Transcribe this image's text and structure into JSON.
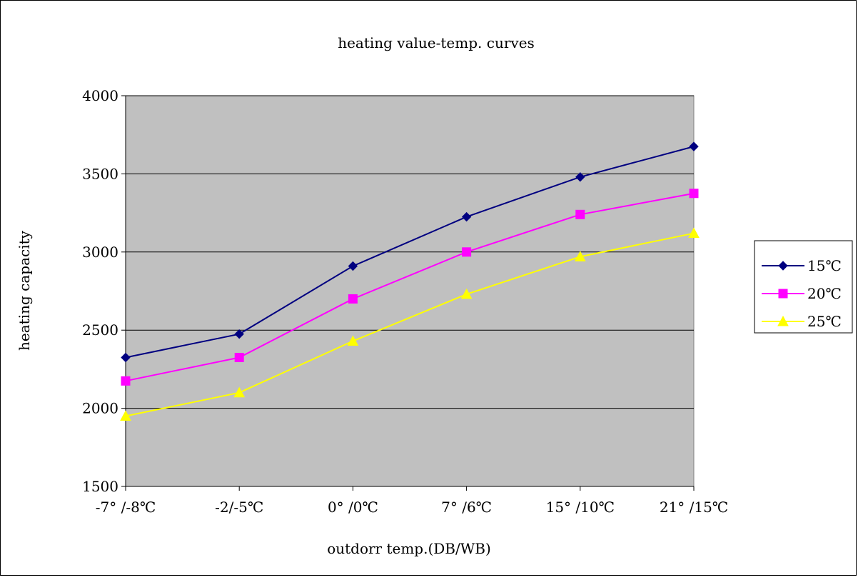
{
  "chart_data": {
    "type": "line",
    "title": "heating value-temp. curves",
    "xlabel": "outdorr temp.(DB/WB)",
    "ylabel": "heating capacity",
    "categories": [
      "-7° /-8℃",
      "-2/-5℃",
      "0° /0℃",
      "7° /6℃",
      "15° /10℃",
      "21° /15℃"
    ],
    "yticks": [
      "1500",
      "2000",
      "2500",
      "3000",
      "3500",
      "4000"
    ],
    "ylim": [
      1500,
      4000
    ],
    "grid": true,
    "legend_position": "right",
    "plot_background": "#c0c0c0",
    "series": [
      {
        "name": "15℃",
        "color": "#000080",
        "marker": "diamond",
        "values": [
          2325,
          2475,
          2910,
          3225,
          3480,
          3675
        ]
      },
      {
        "name": "20℃",
        "color": "#ff00ff",
        "marker": "square",
        "values": [
          2175,
          2325,
          2700,
          3000,
          3240,
          3375
        ]
      },
      {
        "name": "25℃",
        "color": "#ffff00",
        "marker": "triangle",
        "values": [
          1950,
          2100,
          2430,
          2730,
          2970,
          3120
        ]
      }
    ]
  }
}
